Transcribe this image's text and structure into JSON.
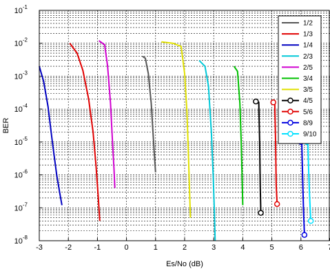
{
  "chart_data": {
    "type": "line",
    "xlabel": "Es/No (dB)",
    "ylabel": "BER",
    "xlim": [
      -3,
      7
    ],
    "ylim": [
      1e-08,
      0.1
    ],
    "yscale": "log",
    "grid": true,
    "legend_position": "top-right",
    "x_ticks": [
      "-3",
      "-2",
      "-1",
      "0",
      "1",
      "2",
      "3",
      "4",
      "5",
      "6",
      "7"
    ],
    "y_ticks": [
      {
        "base": "10",
        "exp": "-1"
      },
      {
        "base": "10",
        "exp": "-2"
      },
      {
        "base": "10",
        "exp": "-3"
      },
      {
        "base": "10",
        "exp": "-4"
      },
      {
        "base": "10",
        "exp": "-5"
      },
      {
        "base": "10",
        "exp": "-6"
      },
      {
        "base": "10",
        "exp": "-7"
      },
      {
        "base": "10",
        "exp": "-8"
      }
    ],
    "series": [
      {
        "name": "1/2",
        "color": "#555555",
        "marker": false,
        "x": [
          0.55,
          0.65,
          0.75,
          0.85,
          0.92,
          0.97,
          1.0
        ],
        "y": [
          0.004,
          0.0035,
          0.0012,
          0.00015,
          1.5e-05,
          3e-06,
          1.2e-06
        ]
      },
      {
        "name": "1/3",
        "color": "#e00000",
        "marker": false,
        "x": [
          -1.95,
          -1.7,
          -1.5,
          -1.3,
          -1.15,
          -1.05,
          -0.97,
          -0.92
        ],
        "y": [
          0.01,
          0.005,
          0.0015,
          0.0002,
          2e-05,
          2e-06,
          2e-07,
          4e-08
        ]
      },
      {
        "name": "1/4",
        "color": "#0000c0",
        "marker": false,
        "x": [
          -3.0,
          -2.85,
          -2.7,
          -2.55,
          -2.4,
          -2.3,
          -2.22
        ],
        "y": [
          0.002,
          0.0007,
          0.00012,
          1e-05,
          1e-06,
          3e-07,
          1.2e-07
        ]
      },
      {
        "name": "2/3",
        "color": "#00c8d8",
        "marker": false,
        "x": [
          2.5,
          2.7,
          2.82,
          2.92,
          2.98,
          3.02,
          3.05
        ],
        "y": [
          0.003,
          0.002,
          0.0005,
          2e-05,
          1e-06,
          1e-07,
          1e-08
        ]
      },
      {
        "name": "2/5",
        "color": "#d000d0",
        "marker": false,
        "x": [
          -0.95,
          -0.75,
          -0.65,
          -0.55,
          -0.48,
          -0.43,
          -0.4
        ],
        "y": [
          0.012,
          0.009,
          0.002,
          0.00015,
          1e-05,
          1.5e-06,
          4e-07
        ]
      },
      {
        "name": "3/4",
        "color": "#00c000",
        "marker": false,
        "x": [
          3.7,
          3.82,
          3.9,
          3.95,
          3.98,
          4.0
        ],
        "y": [
          0.002,
          0.0014,
          0.00015,
          8e-06,
          6e-07,
          1.2e-07
        ]
      },
      {
        "name": "3/5",
        "color": "#e0e000",
        "marker": false,
        "x": [
          1.2,
          1.6,
          1.88,
          2.0,
          2.08,
          2.13,
          2.17,
          2.2
        ],
        "y": [
          0.011,
          0.01,
          0.008,
          0.0012,
          8e-05,
          4e-06,
          3e-07,
          5e-08
        ]
      },
      {
        "name": "4/5",
        "color": "#000000",
        "marker": true,
        "x": [
          4.45,
          4.55,
          4.58,
          4.6,
          4.62
        ],
        "y": [
          0.00017,
          0.00016,
          1e-05,
          5e-07,
          7e-08
        ]
      },
      {
        "name": "5/6",
        "color": "#e00000",
        "marker": true,
        "x": [
          5.05,
          5.1,
          5.13,
          5.15,
          5.18
        ],
        "y": [
          0.00016,
          0.00015,
          8e-06,
          5e-07,
          1.3e-07
        ]
      },
      {
        "name": "8/9",
        "color": "#0000e0",
        "marker": true,
        "x": [
          6.0,
          6.03,
          6.06,
          6.09,
          6.12
        ],
        "y": [
          1e-05,
          9e-06,
          8e-07,
          8e-08,
          1.5e-08
        ]
      },
      {
        "name": "9/10",
        "color": "#00e0ff",
        "marker": true,
        "x": [
          6.2,
          6.24,
          6.27,
          6.3,
          6.34
        ],
        "y": [
          1e-05,
          9e-06,
          1e-06,
          2e-07,
          4e-08
        ]
      }
    ]
  }
}
